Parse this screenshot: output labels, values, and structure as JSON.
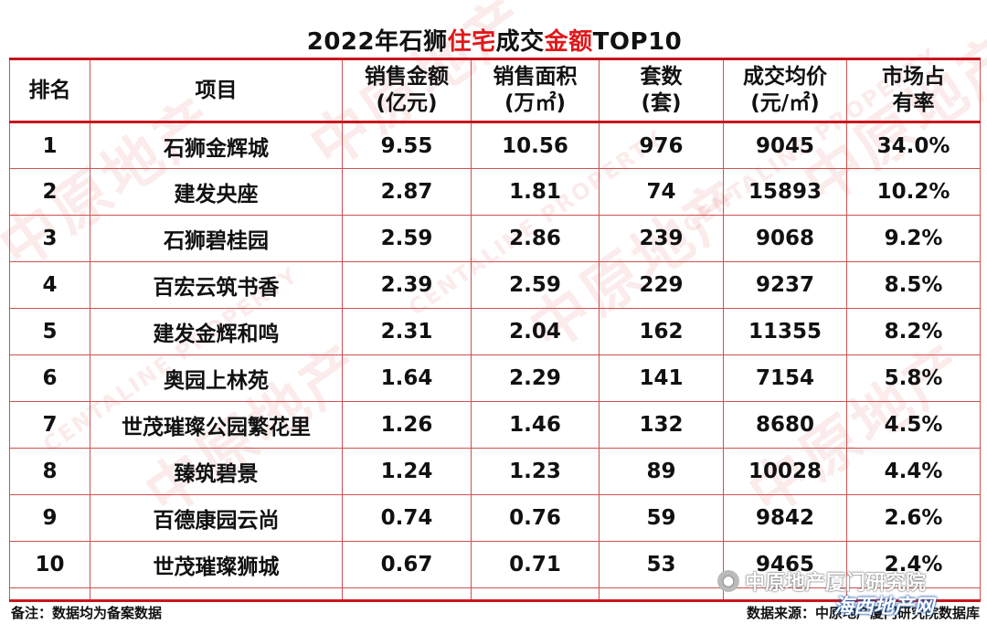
{
  "title": {
    "part1": "2022年石狮",
    "part2": "住宅",
    "part3": "成交",
    "part4": "金额",
    "part5": "TOP10",
    "accent_color": "#e0181b"
  },
  "headers": {
    "rank": "排名",
    "project": "项目",
    "sales_amount": [
      "销售金额",
      "(亿元)"
    ],
    "sales_area": [
      "销售面积",
      "(万㎡)"
    ],
    "units": [
      "套数",
      "(套)"
    ],
    "avg_price": [
      "成交均价",
      "(元/㎡)"
    ],
    "market_share": [
      "市场占",
      "有率"
    ]
  },
  "rows": [
    {
      "rank": "1",
      "project": "石狮金辉城",
      "amount": "9.55",
      "area": "10.56",
      "units": "976",
      "price": "9045",
      "share": "34.0%"
    },
    {
      "rank": "2",
      "project": "建发央座",
      "amount": "2.87",
      "area": "1.81",
      "units": "74",
      "price": "15893",
      "share": "10.2%"
    },
    {
      "rank": "3",
      "project": "石狮碧桂园",
      "amount": "2.59",
      "area": "2.86",
      "units": "239",
      "price": "9068",
      "share": "9.2%"
    },
    {
      "rank": "4",
      "project": "百宏云筑书香",
      "amount": "2.39",
      "area": "2.59",
      "units": "229",
      "price": "9237",
      "share": "8.5%"
    },
    {
      "rank": "5",
      "project": "建发金辉和鸣",
      "amount": "2.31",
      "area": "2.04",
      "units": "162",
      "price": "11355",
      "share": "8.2%"
    },
    {
      "rank": "6",
      "project": "奥园上林苑",
      "amount": "1.64",
      "area": "2.29",
      "units": "141",
      "price": "7154",
      "share": "5.8%"
    },
    {
      "rank": "7",
      "project": "世茂璀璨公园繁花里",
      "amount": "1.26",
      "area": "1.46",
      "units": "132",
      "price": "8680",
      "share": "4.5%"
    },
    {
      "rank": "8",
      "project": "臻筑碧景",
      "amount": "1.24",
      "area": "1.23",
      "units": "89",
      "price": "10028",
      "share": "4.4%"
    },
    {
      "rank": "9",
      "project": "百德康园云尚",
      "amount": "0.74",
      "area": "0.76",
      "units": "59",
      "price": "9842",
      "share": "2.6%"
    },
    {
      "rank": "10",
      "project": "世茂璀璨狮城",
      "amount": "0.67",
      "area": "0.71",
      "units": "53",
      "price": "9465",
      "share": "2.4%"
    }
  ],
  "footer": {
    "note": "备注：数据均为备案数据",
    "source": "数据来源：中原地产厦门研究院数据库"
  },
  "overlay": {
    "wechat_label": "中原地产厦门研究院",
    "site_label": "海西地产网"
  },
  "watermark": {
    "cn": "中原地产",
    "en": "CENTALINE PROPERTY"
  }
}
